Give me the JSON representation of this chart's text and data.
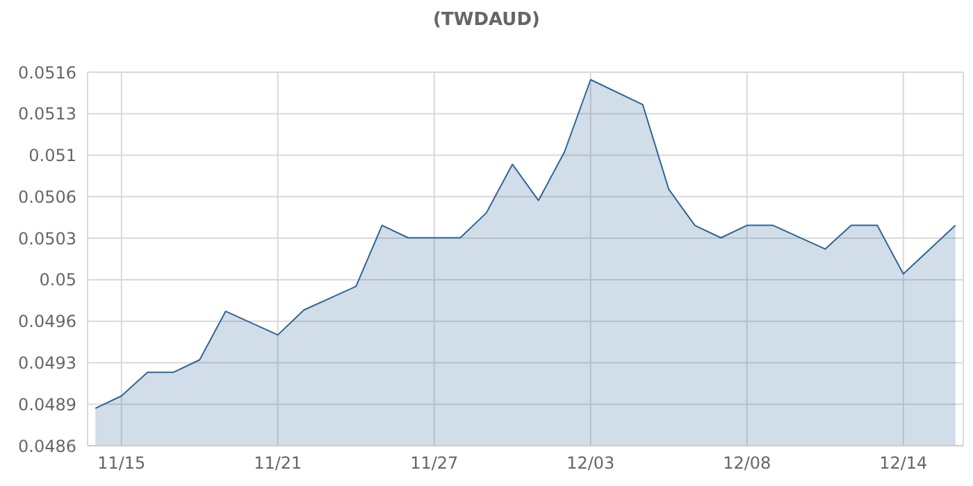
{
  "chart_data": {
    "type": "area",
    "title": "(TWDAUD)",
    "categories": [
      null,
      "11/15",
      null,
      null,
      null,
      null,
      null,
      "11/21",
      null,
      null,
      null,
      null,
      null,
      "11/27",
      null,
      null,
      null,
      null,
      null,
      "12/03",
      null,
      null,
      null,
      null,
      null,
      "12/08",
      null,
      null,
      null,
      null,
      null,
      "12/14",
      null,
      null
    ],
    "series": [
      {
        "color": "#2f6497",
        "values": [
          0.0489,
          0.049,
          0.04919,
          0.04919,
          0.04929,
          0.04968,
          null,
          0.04949,
          0.04969,
          null,
          0.04988,
          0.05037,
          0.05027,
          null,
          0.05027,
          0.05047,
          0.05086,
          0.05057,
          0.05096,
          0.05154,
          null,
          0.05134,
          0.05066,
          0.05037,
          0.05027,
          0.05037,
          0.05037,
          null,
          0.05018,
          0.05037,
          0.05037,
          0.04998,
          null,
          0.05037
        ]
      }
    ],
    "ylim": [
      0.0486,
      0.0516
    ],
    "yticks": [
      {
        "value": 0.0486,
        "label": "0.0486"
      },
      {
        "value": 0.04893333,
        "label": "0.0489"
      },
      {
        "value": 0.04926667,
        "label": "0.0493"
      },
      {
        "value": 0.0496,
        "label": "0.0496"
      },
      {
        "value": 0.04993333,
        "label": "0.05"
      },
      {
        "value": 0.05026667,
        "label": "0.0503"
      },
      {
        "value": 0.0506,
        "label": "0.0506"
      },
      {
        "value": 0.05093333,
        "label": "0.051"
      },
      {
        "value": 0.05126667,
        "label": "0.0513"
      },
      {
        "value": 0.0516,
        "label": "0.0516"
      }
    ],
    "grid": true
  }
}
